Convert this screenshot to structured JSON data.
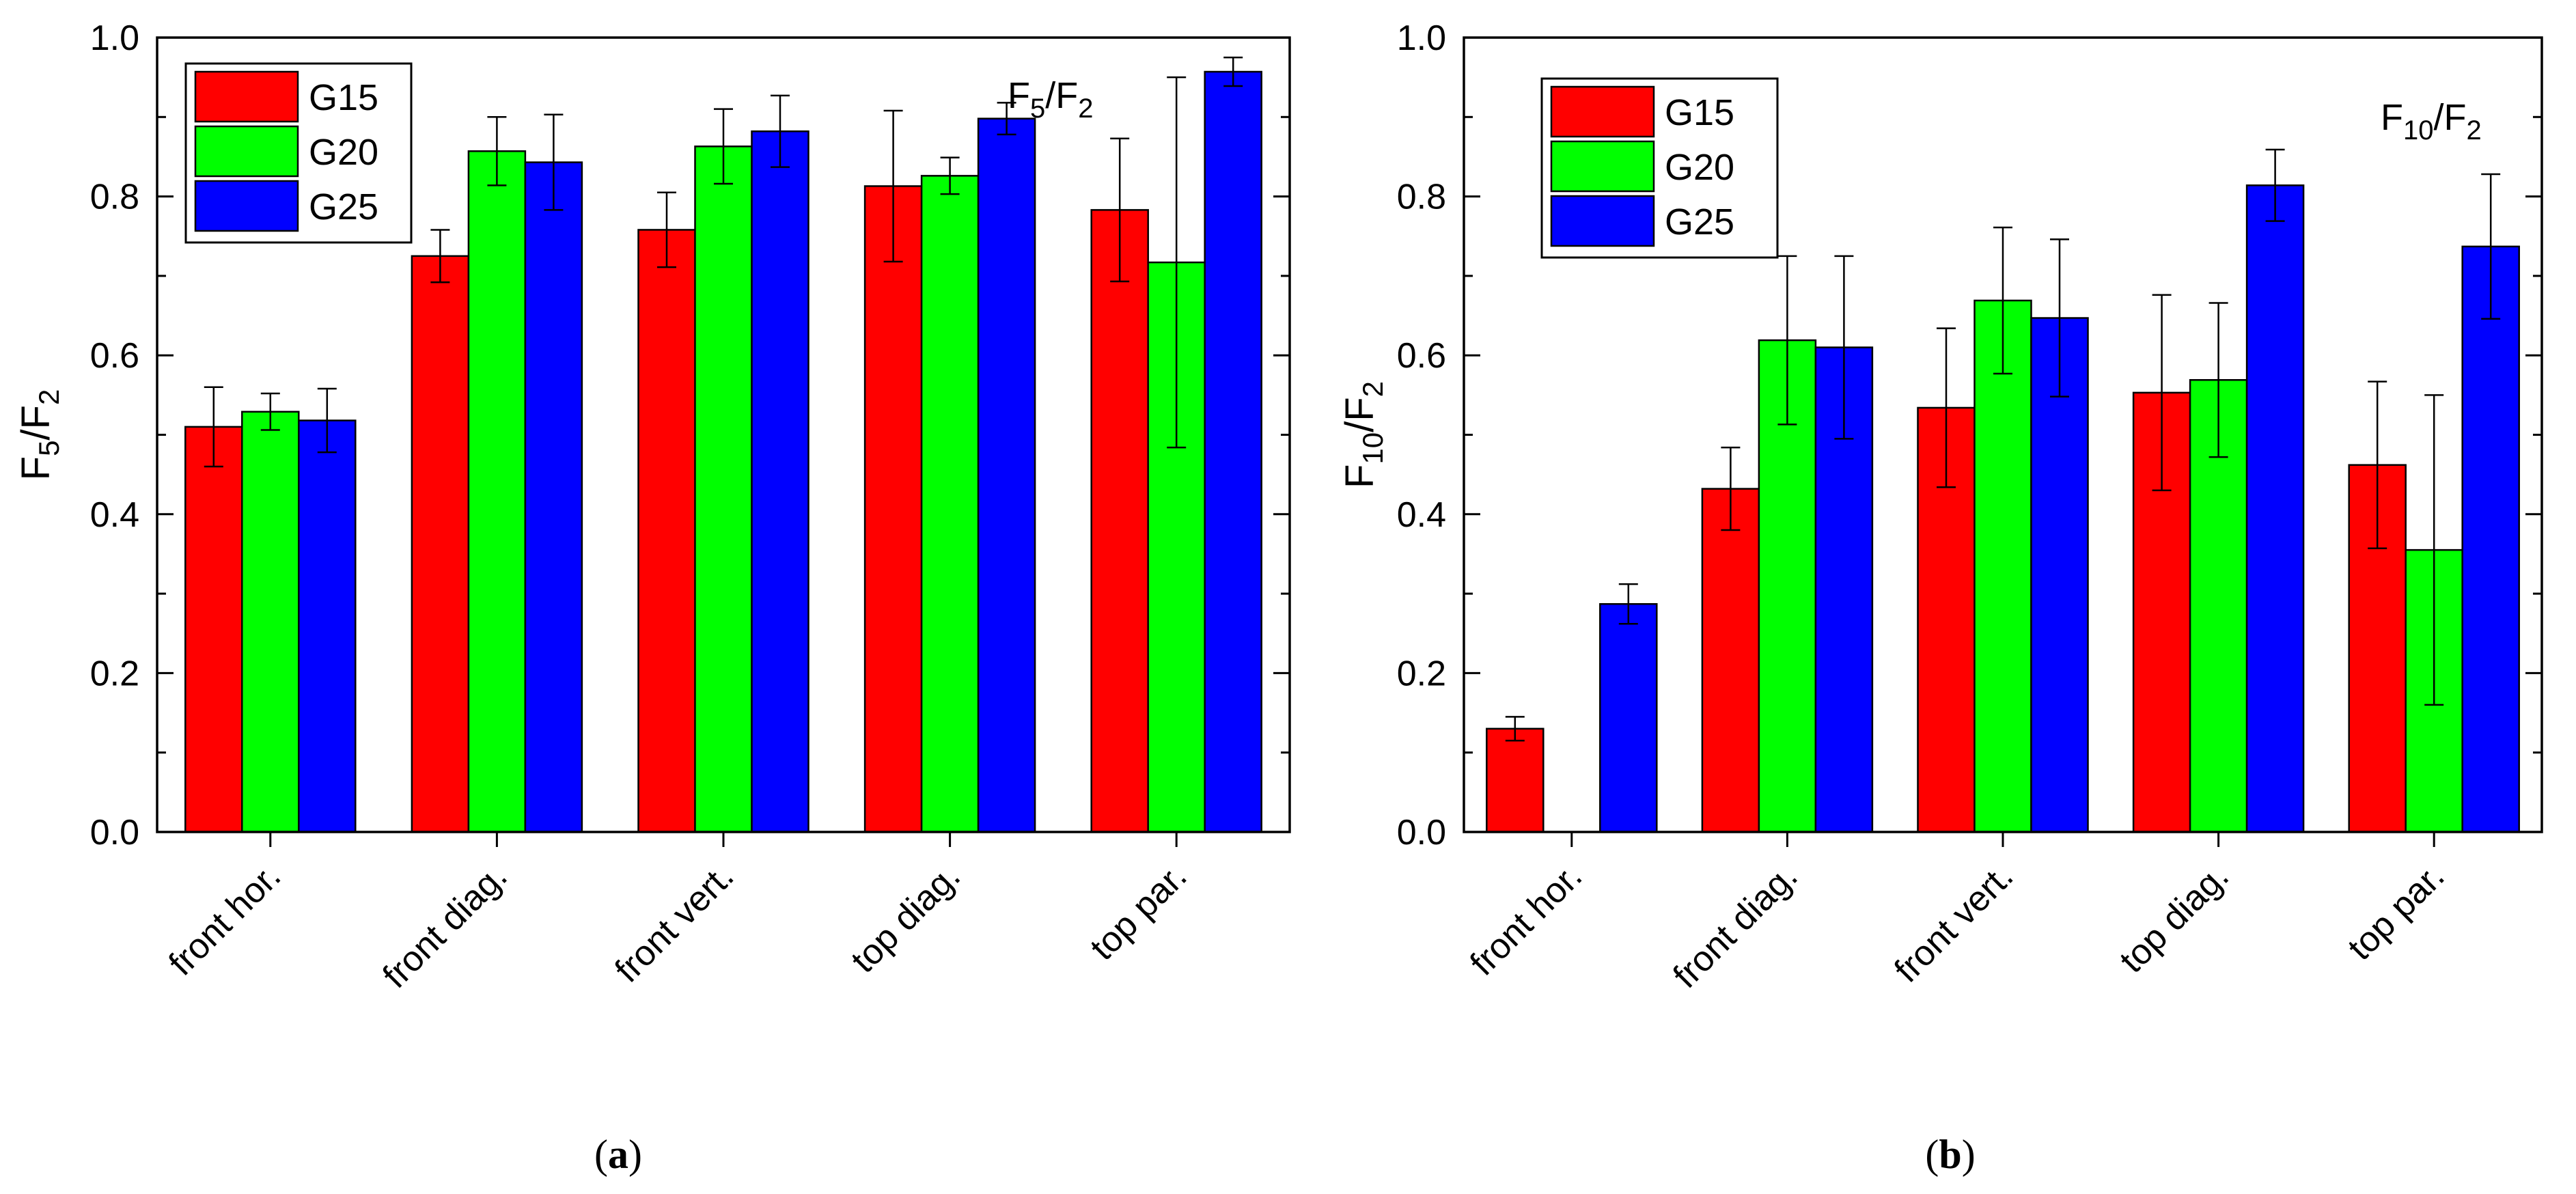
{
  "chart_data": [
    {
      "type": "bar",
      "panel_label": "a",
      "title": "",
      "annotation": {
        "main": "F",
        "sub1": "5",
        "mid": "/F",
        "sub2": "2"
      },
      "ylabel": {
        "main": "F",
        "sub1": "5",
        "mid": "/F",
        "sub2": "2"
      },
      "xlabel": "",
      "ylim": [
        0.0,
        1.0
      ],
      "yticks": [
        "0.0",
        "0.2",
        "0.4",
        "0.6",
        "0.8",
        "1.0"
      ],
      "categories": [
        "front hor.",
        "front diag.",
        "front vert.",
        "top diag.",
        "top par."
      ],
      "legend_position": "top-left",
      "series": [
        {
          "name": "G15",
          "color": "#ff0000",
          "values": [
            0.51,
            0.725,
            0.758,
            0.813,
            0.783
          ],
          "errors": [
            0.05,
            0.033,
            0.047,
            0.095,
            0.09
          ]
        },
        {
          "name": "G20",
          "color": "#00ff00",
          "values": [
            0.529,
            0.857,
            0.863,
            0.826,
            0.717
          ],
          "errors": [
            0.023,
            0.043,
            0.047,
            0.023,
            0.233
          ]
        },
        {
          "name": "G25",
          "color": "#0000ff",
          "values": [
            0.518,
            0.843,
            0.882,
            0.898,
            0.957
          ],
          "errors": [
            0.04,
            0.06,
            0.045,
            0.02,
            0.018
          ]
        }
      ]
    },
    {
      "type": "bar",
      "panel_label": "b",
      "title": "",
      "annotation": {
        "main": "F",
        "sub1": "10",
        "mid": "/F",
        "sub2": "2"
      },
      "ylabel": {
        "main": "F",
        "sub1": "10",
        "mid": "/F",
        "sub2": "2"
      },
      "xlabel": "",
      "ylim": [
        0.0,
        1.0
      ],
      "yticks": [
        "0.0",
        "0.2",
        "0.4",
        "0.6",
        "0.8",
        "1.0"
      ],
      "categories": [
        "front hor.",
        "front diag.",
        "front vert.",
        "top diag.",
        "top par."
      ],
      "legend_position": "top-left",
      "series": [
        {
          "name": "G15",
          "color": "#ff0000",
          "values": [
            0.13,
            0.432,
            0.534,
            0.553,
            0.462
          ],
          "errors": [
            0.015,
            0.052,
            0.1,
            0.123,
            0.105
          ]
        },
        {
          "name": "G20",
          "color": "#00ff00",
          "values": [
            null,
            0.619,
            0.669,
            0.569,
            0.355
          ],
          "errors": [
            null,
            0.106,
            0.092,
            0.097,
            0.195
          ]
        },
        {
          "name": "G25",
          "color": "#0000ff",
          "values": [
            0.287,
            0.61,
            0.647,
            0.814,
            0.737
          ],
          "errors": [
            0.025,
            0.115,
            0.099,
            0.045,
            0.091
          ]
        }
      ]
    }
  ]
}
